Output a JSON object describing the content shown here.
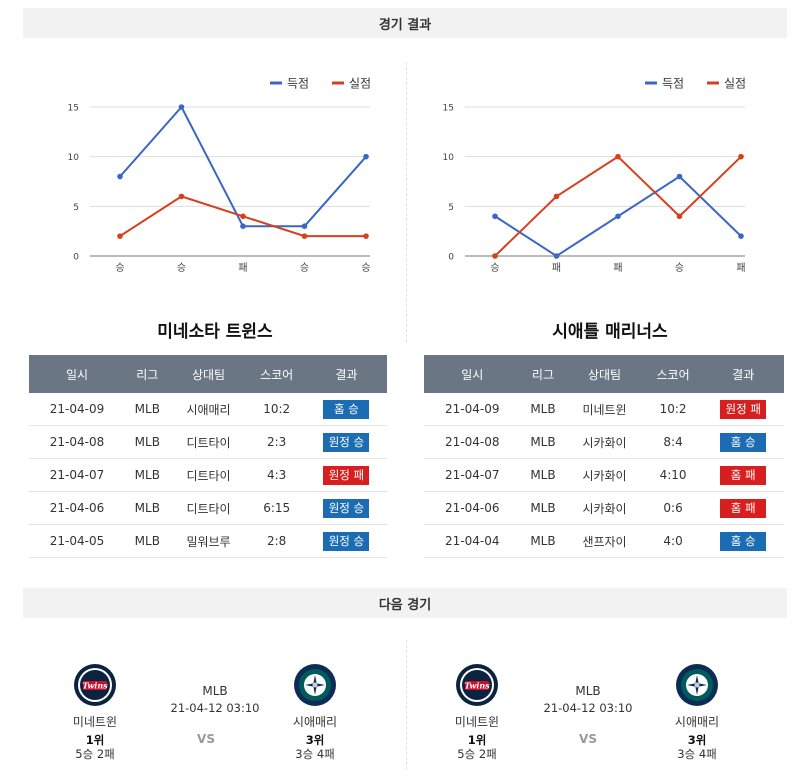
{
  "sections": {
    "results_title": "경기 결과",
    "next_title": "다음 경기"
  },
  "legend": {
    "scored": "득점",
    "allowed": "실점"
  },
  "colors": {
    "scored": "#3a67c7",
    "allowed": "#d7401f",
    "win": "#1c6cb3",
    "loss": "#d71f1f",
    "header": "#6b7685"
  },
  "table_headers": [
    "일시",
    "리그",
    "상대팀",
    "스코어",
    "결과"
  ],
  "left": {
    "team": "미네소타 트윈스",
    "chart_data": {
      "type": "line",
      "categories": [
        "승",
        "승",
        "패",
        "승",
        "승"
      ],
      "series": [
        {
          "name": "득점",
          "values": [
            8,
            15,
            3,
            3,
            10
          ]
        },
        {
          "name": "실점",
          "values": [
            2,
            6,
            4,
            2,
            2
          ]
        }
      ],
      "ylim": [
        0,
        15
      ],
      "yticks": [
        "0",
        "5",
        "10",
        "15"
      ],
      "legend_position": "top-right",
      "grid": true
    },
    "rows": [
      {
        "date": "21-04-09",
        "league": "MLB",
        "opponent": "시애매리",
        "score": "10:2",
        "result": "홈 승",
        "win": true
      },
      {
        "date": "21-04-08",
        "league": "MLB",
        "opponent": "디트타이",
        "score": "2:3",
        "result": "원정 승",
        "win": true
      },
      {
        "date": "21-04-07",
        "league": "MLB",
        "opponent": "디트타이",
        "score": "4:3",
        "result": "원정 패",
        "win": false
      },
      {
        "date": "21-04-06",
        "league": "MLB",
        "opponent": "디트타이",
        "score": "6:15",
        "result": "원정 승",
        "win": true
      },
      {
        "date": "21-04-05",
        "league": "MLB",
        "opponent": "밀워브루",
        "score": "2:8",
        "result": "원정 승",
        "win": true
      }
    ]
  },
  "right": {
    "team": "시애틀 매리너스",
    "chart_data": {
      "type": "line",
      "categories": [
        "승",
        "패",
        "패",
        "승",
        "패"
      ],
      "series": [
        {
          "name": "득점",
          "values": [
            4,
            0,
            4,
            8,
            2
          ]
        },
        {
          "name": "실점",
          "values": [
            0,
            6,
            10,
            4,
            10
          ]
        }
      ],
      "ylim": [
        0,
        15
      ],
      "yticks": [
        "0",
        "5",
        "10",
        "15"
      ],
      "legend_position": "top-right",
      "grid": true
    },
    "rows": [
      {
        "date": "21-04-09",
        "league": "MLB",
        "opponent": "미네트윈",
        "score": "10:2",
        "result": "원정 패",
        "win": false
      },
      {
        "date": "21-04-08",
        "league": "MLB",
        "opponent": "시카화이",
        "score": "8:4",
        "result": "홈 승",
        "win": true
      },
      {
        "date": "21-04-07",
        "league": "MLB",
        "opponent": "시카화이",
        "score": "4:10",
        "result": "홈 패",
        "win": false
      },
      {
        "date": "21-04-06",
        "league": "MLB",
        "opponent": "시카화이",
        "score": "0:6",
        "result": "홈 패",
        "win": false
      },
      {
        "date": "21-04-04",
        "league": "MLB",
        "opponent": "샌프자이",
        "score": "4:0",
        "result": "홈 승",
        "win": true
      }
    ]
  },
  "next_games": [
    {
      "league": "MLB",
      "datetime": "21-04-12 03:10",
      "vs": "VS",
      "home": {
        "name": "미네트윈",
        "rank": "1위",
        "record": "5승 2패",
        "logo": "twins-logo"
      },
      "away": {
        "name": "시애매리",
        "rank": "3위",
        "record": "3승 4패",
        "logo": "mariners-logo"
      }
    },
    {
      "league": "MLB",
      "datetime": "21-04-12 03:10",
      "vs": "VS",
      "home": {
        "name": "미네트윈",
        "rank": "1위",
        "record": "5승 2패",
        "logo": "twins-logo"
      },
      "away": {
        "name": "시애매리",
        "rank": "3위",
        "record": "3승 4패",
        "logo": "mariners-logo"
      }
    }
  ]
}
